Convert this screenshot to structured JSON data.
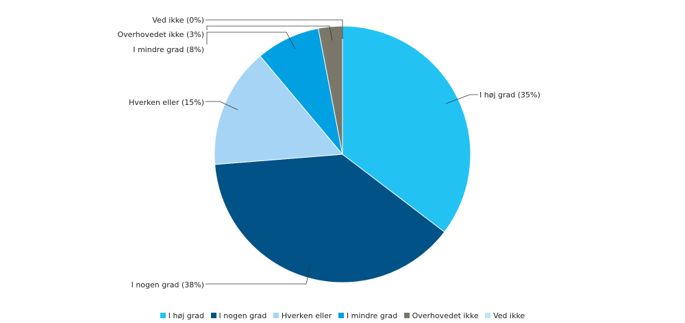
{
  "chart_data": {
    "type": "pie",
    "slices": [
      {
        "label": "I høj grad",
        "value": 35,
        "display": "I høj grad (35%)",
        "color": "#22c3f3"
      },
      {
        "label": "I nogen grad",
        "value": 38,
        "display": "I nogen grad (38%)",
        "color": "#005287"
      },
      {
        "label": "Hverken eller",
        "value": 15,
        "display": "Hverken eller (15%)",
        "color": "#a6d4f4"
      },
      {
        "label": "I mindre grad",
        "value": 8,
        "display": "I mindre grad (8%)",
        "color": "#00a0e2"
      },
      {
        "label": "Overhovedet ikke",
        "value": 3,
        "display": "Overhovedet ikke (3%)",
        "color": "#7b7768"
      },
      {
        "label": "Ved ikke",
        "value": 0,
        "display": "Ved ikke (0%)",
        "color": "#bfe6f8"
      }
    ],
    "legend": [
      "I høj grad",
      "I nogen grad",
      "Hverken eller",
      "I mindre grad",
      "Overhovedet ikke",
      "Ved ikke"
    ],
    "legend_position": "bottom"
  }
}
